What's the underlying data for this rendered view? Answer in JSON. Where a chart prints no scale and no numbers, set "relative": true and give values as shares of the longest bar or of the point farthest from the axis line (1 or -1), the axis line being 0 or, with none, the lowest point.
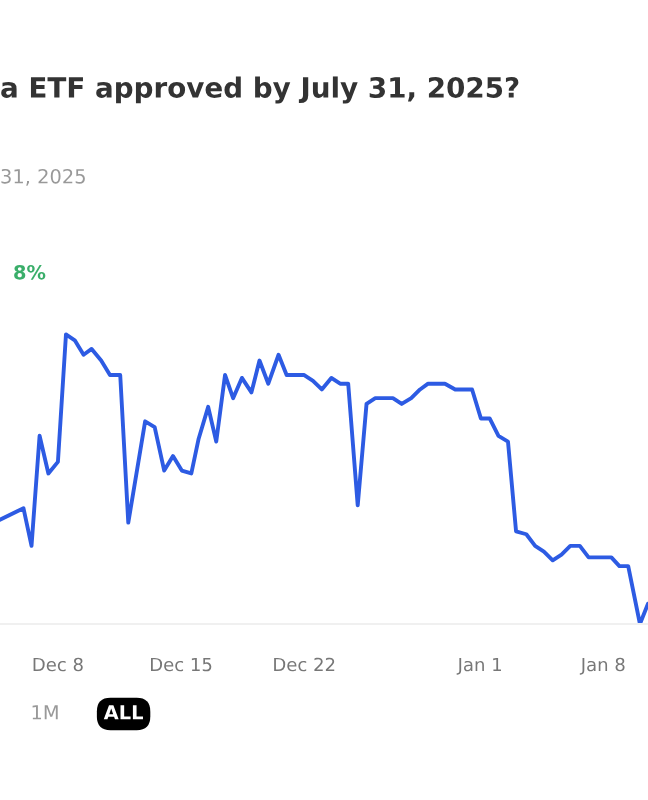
{
  "chart_data": {
    "type": "line",
    "title": "a ETF approved by July 31, 2025?",
    "subtitle": "31, 2025",
    "annotations": [
      "8%",
      "1M",
      "ALL"
    ],
    "relative": true,
    "x": [
      "2024-12-04T17:00",
      "2024-12-06T01:00",
      "2024-12-06T12:00",
      "2024-12-06T23:00",
      "2024-12-07T11:00",
      "2024-12-08T00:00",
      "2024-12-08T11:00",
      "2024-12-08T23:00",
      "2024-12-09T11:00",
      "2024-12-09T22:00",
      "2024-12-10T11:00",
      "2024-12-10T23:00",
      "2024-12-11T13:00",
      "2024-12-12T00:00",
      "2024-12-12T23:00",
      "2024-12-13T12:00",
      "2024-12-14T01:00",
      "2024-12-14T13:00",
      "2024-12-15T01:00",
      "2024-12-15T14:00",
      "2024-12-16T00:00",
      "2024-12-16T13:00",
      "2024-12-17T00:00",
      "2024-12-17T12:00",
      "2024-12-17T23:00",
      "2024-12-18T11:00",
      "2024-12-19T00:00",
      "2024-12-19T11:00",
      "2024-12-19T23:00",
      "2024-12-20T13:00",
      "2024-12-21T00:00",
      "2024-12-22T00:00",
      "2024-12-22T12:00",
      "2024-12-23T00:00",
      "2024-12-23T13:00",
      "2024-12-24T01:00",
      "2024-12-24T12:00",
      "2024-12-25T01:00",
      "2024-12-25T13:00",
      "2024-12-26T01:00",
      "2024-12-27T01:00",
      "2024-12-27T13:00",
      "2024-12-28T02:00",
      "2024-12-28T14:00",
      "2024-12-29T01:00",
      "2024-12-30T00:00",
      "2024-12-30T14:00",
      "2024-12-31T13:00",
      "2025-01-01T01:00",
      "2025-01-01T13:00",
      "2025-01-02T01:00",
      "2025-01-02T14:00",
      "2025-01-03T01:00",
      "2025-01-03T15:00",
      "2025-01-04T03:00",
      "2025-01-04T15:00",
      "2025-01-05T03:00",
      "2025-01-05T15:00",
      "2025-01-06T03:00",
      "2025-01-06T16:00",
      "2025-01-07T04:00",
      "2025-01-08T11:00",
      "2025-01-08T22:00",
      "2025-01-09T10:00",
      "2025-01-10T02:00",
      "2025-01-10T13:00"
    ],
    "series": [
      {
        "color": "#2d5be3",
        "values": [
          0.36,
          0.4,
          0.27,
          0.65,
          0.52,
          0.56,
          1.0,
          0.98,
          0.93,
          0.95,
          0.91,
          0.86,
          0.86,
          0.35,
          0.7,
          0.68,
          0.53,
          0.58,
          0.53,
          0.52,
          0.64,
          0.75,
          0.63,
          0.86,
          0.78,
          0.85,
          0.8,
          0.91,
          0.83,
          0.93,
          0.86,
          0.86,
          0.84,
          0.81,
          0.85,
          0.83,
          0.83,
          0.41,
          0.76,
          0.78,
          0.78,
          0.76,
          0.78,
          0.81,
          0.83,
          0.83,
          0.81,
          0.81,
          0.71,
          0.71,
          0.65,
          0.63,
          0.32,
          0.31,
          0.27,
          0.25,
          0.22,
          0.24,
          0.27,
          0.27,
          0.23,
          0.23,
          0.2,
          0.2,
          0,
          0.07
        ]
      }
    ],
    "xlim": [
      "2024-12-04T17:00",
      "2025-01-10T13:00"
    ],
    "xticks": [
      {
        "value": "2024-12-08",
        "label": "Dec 8"
      },
      {
        "value": "2024-12-15",
        "label": "Dec 15"
      },
      {
        "value": "2024-12-22",
        "label": "Dec 22"
      },
      {
        "value": "2025-01-01",
        "label": "Jan 1"
      },
      {
        "value": "2025-01-08",
        "label": "Jan 8"
      }
    ],
    "marker": "none",
    "line_style": "solid"
  }
}
